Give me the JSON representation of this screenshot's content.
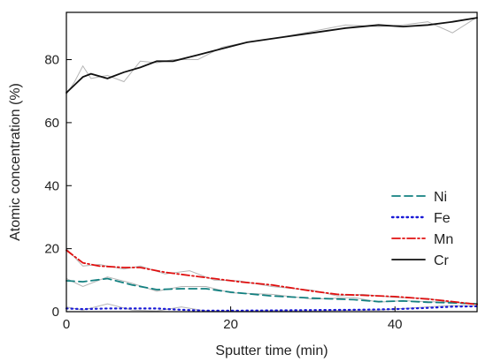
{
  "chart_data": {
    "type": "line",
    "title": "",
    "xlabel": "Sputter time (min)",
    "ylabel": "Atomic concentration (%)",
    "xlim": [
      0,
      50
    ],
    "ylim": [
      0,
      95
    ],
    "xticks": [
      0,
      20,
      40
    ],
    "yticks": [
      0,
      20,
      40,
      60,
      80
    ],
    "grid": false,
    "legend": {
      "position": "right-bottom"
    },
    "series": [
      {
        "name": "Ni",
        "color": "#138080",
        "dash": "dashed",
        "x": [
          0,
          2,
          5,
          8,
          11,
          14,
          17,
          20,
          25,
          30,
          35,
          38,
          41,
          44,
          47,
          50
        ],
        "y": [
          9.8,
          9.5,
          10.5,
          8.5,
          7,
          7.3,
          7.3,
          6.2,
          5,
          4.3,
          3.8,
          3.2,
          3.4,
          3.0,
          2.8,
          2.5
        ],
        "raw_y": [
          10.5,
          8,
          11,
          9,
          6.5,
          8,
          8,
          6,
          5.5,
          4,
          4.5,
          3,
          3.5,
          3.2,
          3.0,
          2.6
        ]
      },
      {
        "name": "Fe",
        "color": "#1a1ad6",
        "dash": "dotted",
        "x": [
          0,
          2,
          5,
          8,
          11,
          14,
          17,
          20,
          25,
          30,
          35,
          38,
          41,
          44,
          47,
          50
        ],
        "y": [
          1,
          0.8,
          1,
          1,
          1,
          0.6,
          0.3,
          0.3,
          0.4,
          0.5,
          0.6,
          0.7,
          0.9,
          1.2,
          1.6,
          1.7
        ],
        "raw_y": [
          1.5,
          0.5,
          2.5,
          0.5,
          0.2,
          1.5,
          0.2,
          0.1,
          0.3,
          0.2,
          0.5,
          0.5,
          1,
          1.5,
          2,
          1.8
        ]
      },
      {
        "name": "Mn",
        "color": "#e01010",
        "dash": "dashdot",
        "x": [
          0,
          2,
          4,
          7,
          9,
          12,
          15,
          18,
          21,
          25,
          30,
          33,
          36,
          40,
          44,
          47,
          50
        ],
        "y": [
          19.5,
          15.5,
          14.5,
          14,
          14,
          12.5,
          11.5,
          10.5,
          9.5,
          8.5,
          6.5,
          5.5,
          5.2,
          4.8,
          4.0,
          3.2,
          2.3
        ],
        "raw_y": [
          20,
          14.5,
          15,
          13.5,
          14.5,
          12,
          13,
          10,
          9.8,
          8,
          6.8,
          5,
          5.5,
          4.5,
          4.2,
          3.0,
          2.2
        ]
      },
      {
        "name": "Cr",
        "color": "#111111",
        "dash": "solid",
        "x": [
          0,
          1,
          2,
          3,
          5,
          7,
          9,
          11,
          13,
          16,
          19,
          22,
          26,
          30,
          34,
          38,
          41,
          44,
          47,
          50
        ],
        "y": [
          69.5,
          72,
          74.5,
          75.5,
          74,
          76,
          77.5,
          79.5,
          79.5,
          81.5,
          83.5,
          85.5,
          87,
          88.5,
          90,
          91,
          90.5,
          91,
          92,
          93.3
        ],
        "raw_y": [
          69,
          73,
          78,
          74,
          75,
          73,
          79.5,
          79,
          80,
          80,
          84,
          85.5,
          87,
          89,
          91,
          90.5,
          91,
          92,
          88.5,
          93.5
        ]
      }
    ]
  }
}
